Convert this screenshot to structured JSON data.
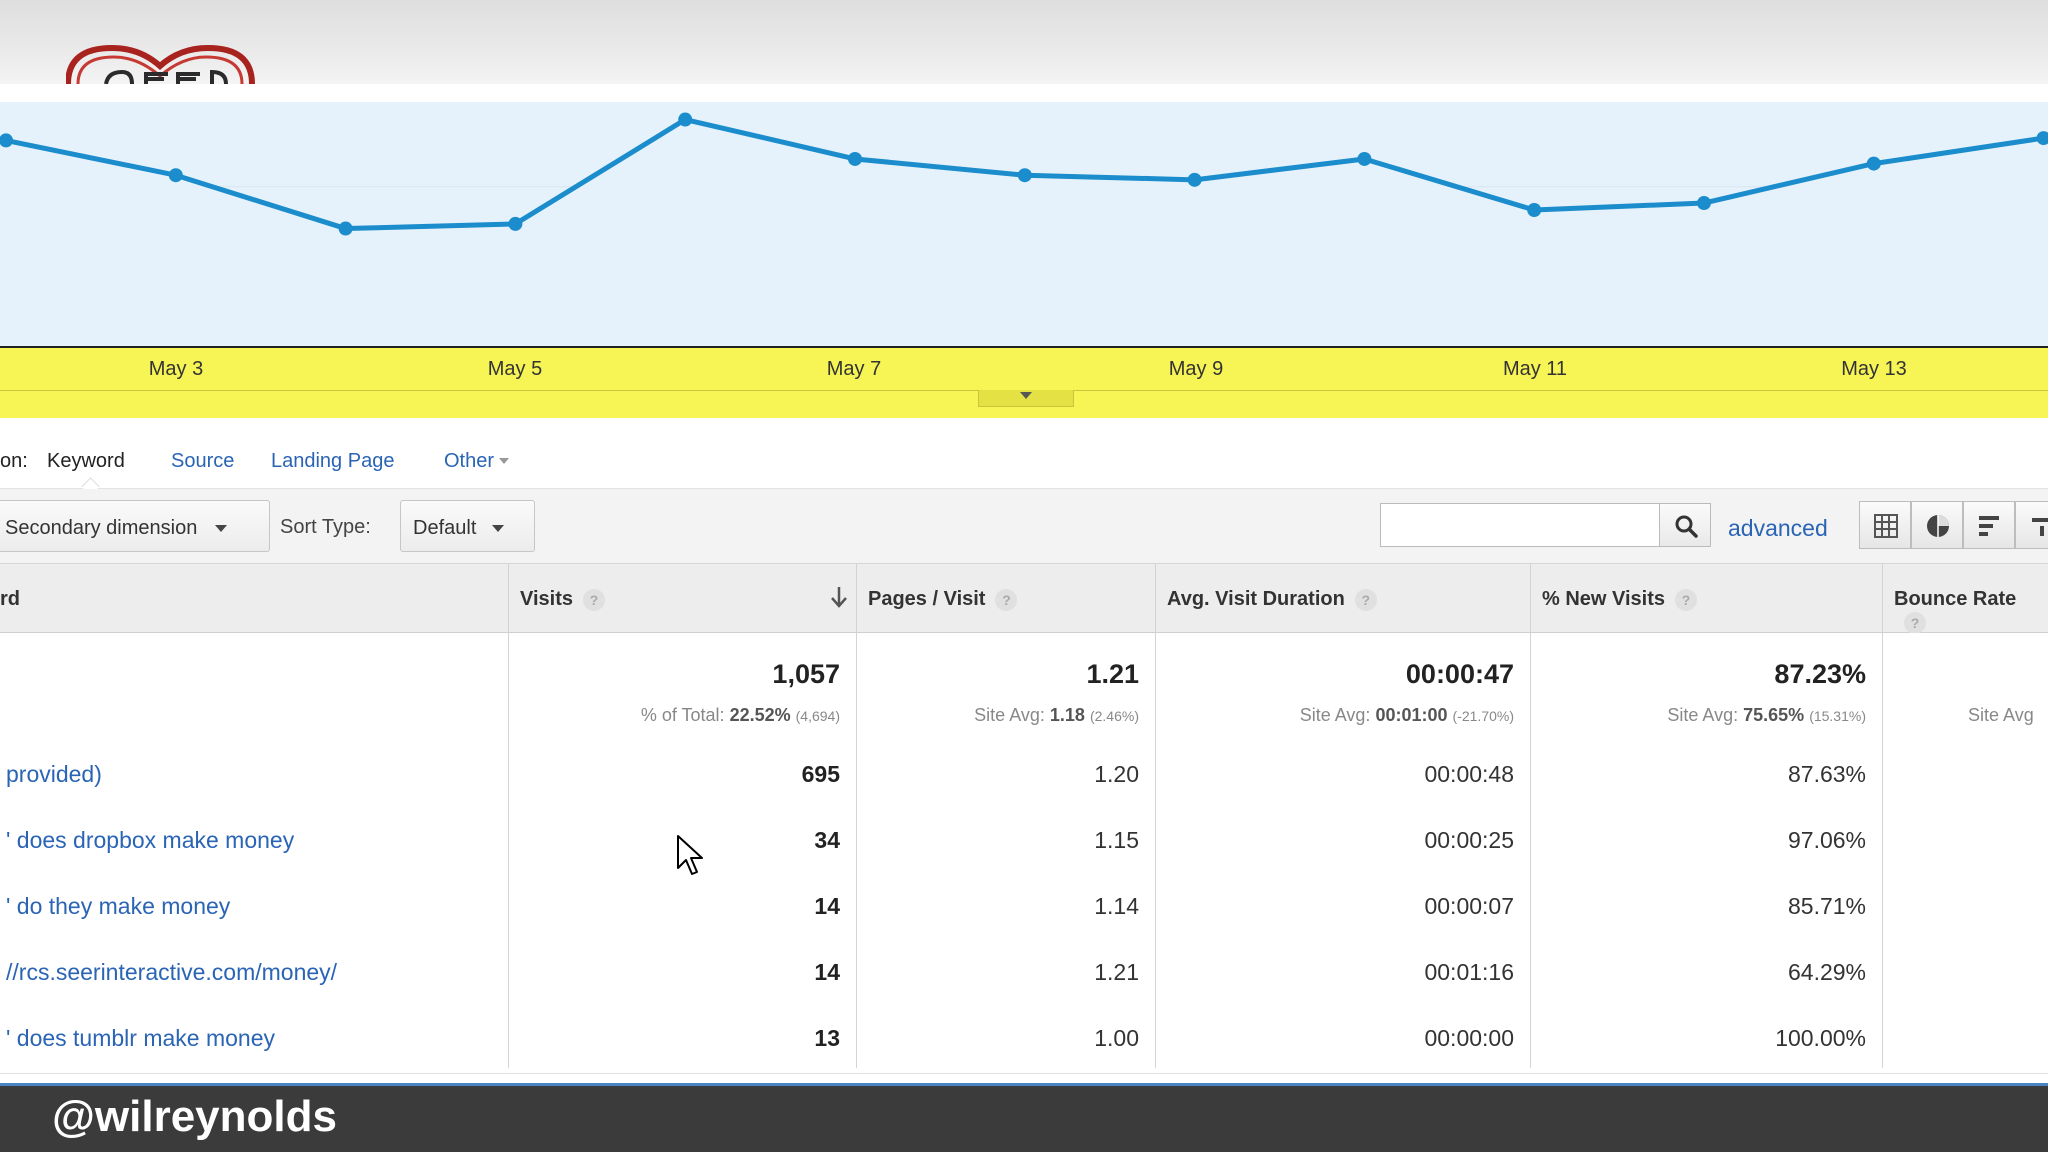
{
  "chart": {
    "x_labels": [
      "May 3",
      "May 5",
      "May 7",
      "May 9",
      "May 11",
      "May 13"
    ],
    "line_color": "#1b8ccc",
    "fill_color": "#e6f2fb",
    "axis_band_color": "#f7f455"
  },
  "chart_data": {
    "type": "area",
    "x": [
      "May 2",
      "May 3",
      "May 4",
      "May 5",
      "May 6",
      "May 7",
      "May 8",
      "May 9",
      "May 10",
      "May 11",
      "May 12",
      "May 13",
      "May 14"
    ],
    "series": [
      {
        "values": [
          0.8,
          0.65,
          0.42,
          0.44,
          0.89,
          0.72,
          0.65,
          0.63,
          0.72,
          0.5,
          0.53,
          0.7,
          0.81
        ]
      }
    ],
    "ylim": [
      0,
      1
    ],
    "grid": true
  },
  "dimensions": {
    "prefix": "on:",
    "active": "Keyword",
    "links": [
      "Source",
      "Landing Page",
      "Other"
    ]
  },
  "toolbar": {
    "secondary_dimension": "Secondary dimension",
    "sort_type_label": "Sort Type:",
    "sort_type_value": "Default",
    "search_value": "",
    "advanced": "advanced",
    "view_icons": [
      "grid-icon",
      "pie-icon",
      "bars-icon",
      "compare-icon"
    ]
  },
  "table": {
    "headers": {
      "keyword": "rd",
      "visits": "Visits",
      "pages": "Pages / Visit",
      "duration": "Avg. Visit Duration",
      "new_visits": "% New Visits",
      "bounce": "Bounce Rate"
    },
    "totals": {
      "visits": "1,057",
      "visits_prefix": "% of Total:",
      "visits_pct": "22.52%",
      "visits_of": "(4,694)",
      "pages": "1.21",
      "pages_prefix": "Site Avg:",
      "pages_avg": "1.18",
      "pages_diff": "(2.46%)",
      "duration": "00:00:47",
      "duration_prefix": "Site Avg:",
      "duration_avg": "00:01:00",
      "duration_diff": "(-21.70%)",
      "new_visits": "87.23%",
      "new_prefix": "Site Avg:",
      "new_avg": "75.65%",
      "new_diff": "(15.31%)",
      "bounce_prefix": "Site Avg"
    },
    "rows": [
      {
        "keyword": " provided)",
        "visits": "695",
        "pages": "1.20",
        "duration": "00:00:48",
        "new_visits": "87.63%"
      },
      {
        "keyword": "' does dropbox make money",
        "visits": "34",
        "pages": "1.15",
        "duration": "00:00:25",
        "new_visits": "97.06%"
      },
      {
        "keyword": "' do they make money",
        "visits": "14",
        "pages": "1.14",
        "duration": "00:00:07",
        "new_visits": "85.71%"
      },
      {
        "keyword": "//rcs.seerinteractive.com/money/",
        "visits": "14",
        "pages": "1.21",
        "duration": "00:01:16",
        "new_visits": "64.29%"
      },
      {
        "keyword": "' does tumblr make money",
        "visits": "13",
        "pages": "1.00",
        "duration": "00:00:00",
        "new_visits": "100.00%"
      }
    ]
  },
  "footer": {
    "handle": "@wilreynolds"
  }
}
